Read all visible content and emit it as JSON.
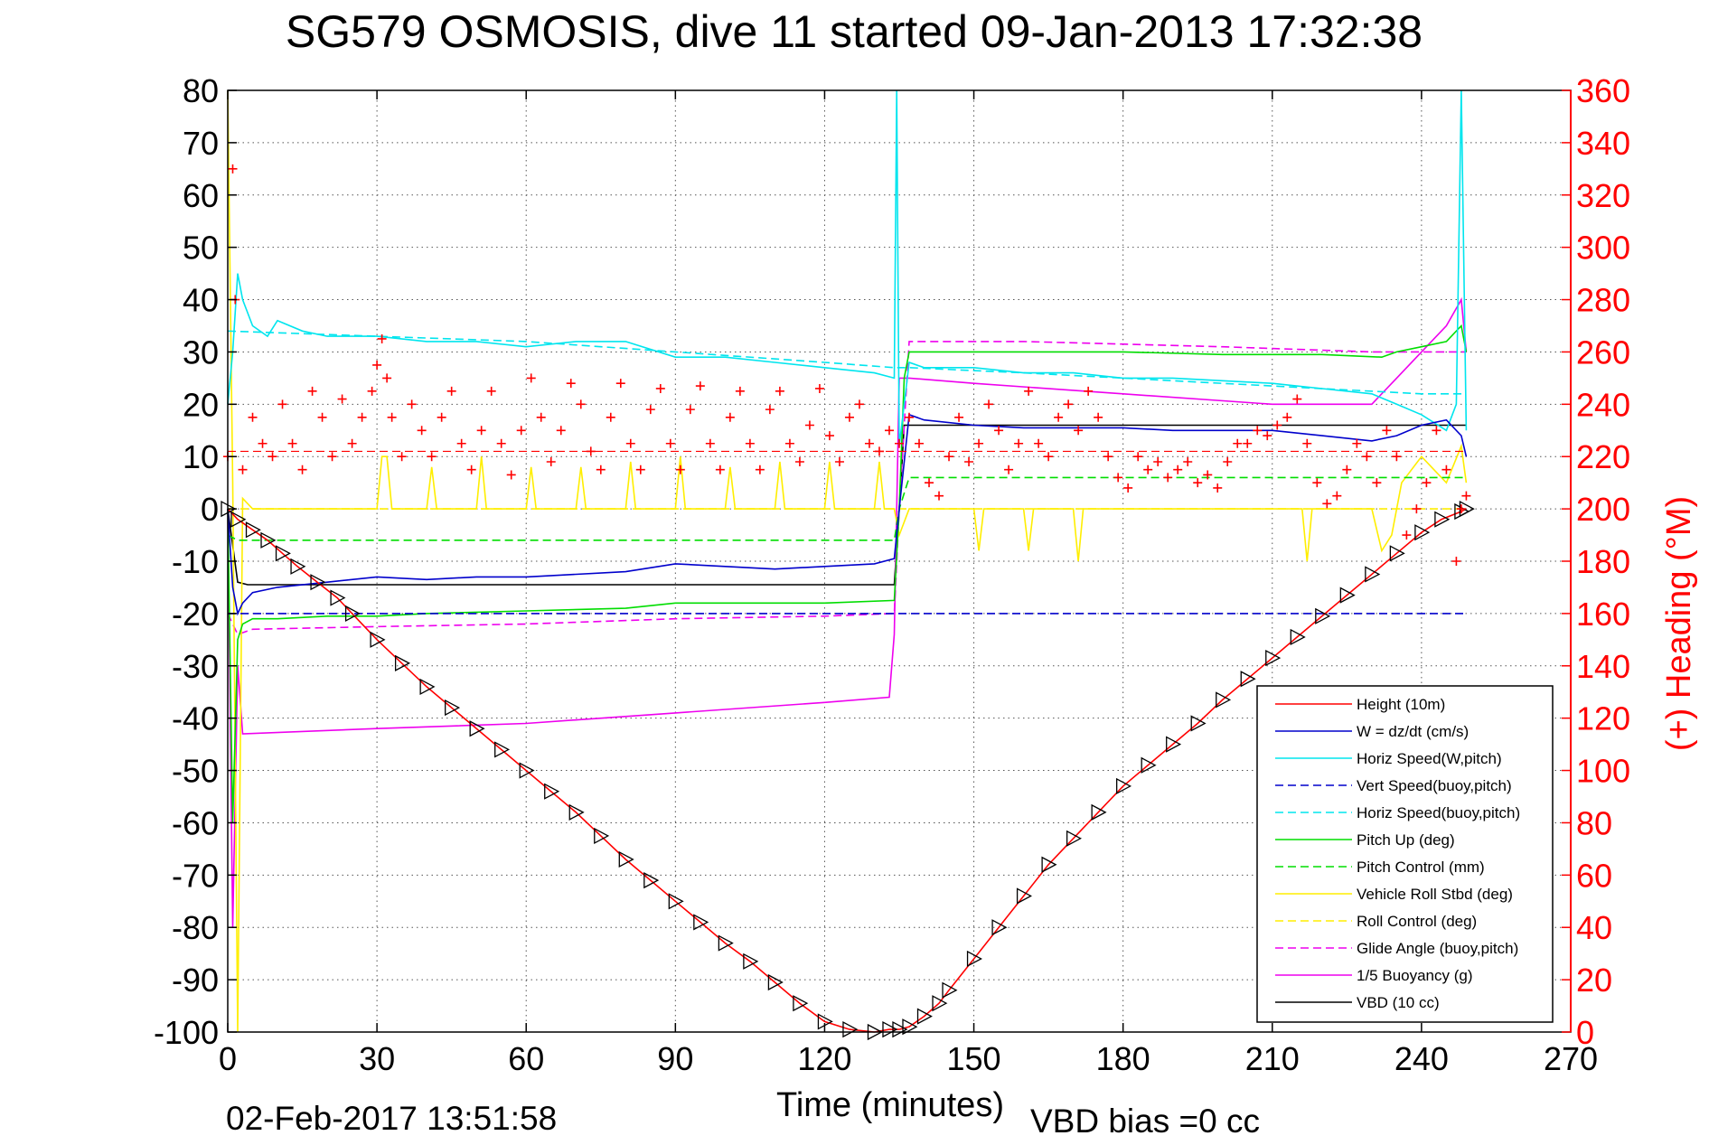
{
  "page": {
    "title": "SG579 OSMOSIS, dive 11 started 09-Jan-2013 17:32:38",
    "footer_date": "02-Feb-2017 13:51:58",
    "footer_vbd": "VBD bias =0 cc"
  },
  "chart_data": {
    "type": "line",
    "title": "SG579 OSMOSIS, dive 11 started 09-Jan-2013 17:32:38",
    "xlabel": "Time (minutes)",
    "ylabel": "",
    "y2label": "(+) Heading (°M)",
    "xlim": [
      0,
      270
    ],
    "ylim": [
      -100,
      80
    ],
    "y2lim": [
      0,
      360
    ],
    "xticks": [
      0,
      30,
      60,
      90,
      120,
      150,
      180,
      210,
      240,
      270
    ],
    "yticks": [
      80,
      70,
      60,
      50,
      40,
      30,
      20,
      10,
      0,
      -10,
      -20,
      -30,
      -40,
      -50,
      -60,
      -70,
      -80,
      -90,
      -100
    ],
    "y2ticks": [
      360,
      340,
      320,
      300,
      280,
      260,
      240,
      220,
      200,
      180,
      160,
      140,
      120,
      100,
      80,
      60,
      40,
      20,
      0
    ],
    "grid": true,
    "legend_position": "bottom-right",
    "colors": {
      "red": "#ff0000",
      "blue": "#0000cc",
      "cyan": "#00e5ee",
      "green": "#00dd00",
      "yellow": "#ffee00",
      "magenta": "#ee00ee",
      "black": "#000000"
    },
    "series": [
      {
        "name": "Height (10m)",
        "color": "red",
        "dash": "solid",
        "marker": "triangle",
        "x": [
          0,
          2,
          5,
          8,
          11,
          14,
          18,
          22,
          25,
          30,
          35,
          40,
          45,
          50,
          55,
          60,
          65,
          70,
          75,
          80,
          85,
          90,
          95,
          100,
          105,
          110,
          115,
          120,
          125,
          130,
          133,
          135,
          137,
          140,
          143,
          145,
          150,
          155,
          160,
          165,
          170,
          175,
          180,
          185,
          190,
          195,
          200,
          205,
          210,
          215,
          220,
          225,
          230,
          235,
          240,
          244,
          248,
          249
        ],
        "y": [
          0,
          -2,
          -4,
          -6,
          -8.5,
          -11,
          -14,
          -17,
          -20,
          -25,
          -29.5,
          -34,
          -38,
          -42,
          -46,
          -50,
          -54,
          -58,
          -62.5,
          -67,
          -71,
          -75,
          -79,
          -83,
          -86.5,
          -90.5,
          -94.5,
          -98,
          -99.5,
          -100,
          -99.5,
          -99.5,
          -99,
          -97,
          -94.5,
          -92,
          -86,
          -80,
          -74,
          -68,
          -63,
          -58,
          -53,
          -49,
          -45,
          -41,
          -36.5,
          -32.5,
          -28.5,
          -24.5,
          -20.5,
          -16.5,
          -12.5,
          -8.5,
          -4.5,
          -2,
          -0.5,
          0
        ]
      },
      {
        "name": "W = dz/dt (cm/s)",
        "color": "blue",
        "dash": "solid",
        "x": [
          0,
          1,
          2,
          3,
          5,
          10,
          20,
          30,
          40,
          50,
          60,
          70,
          80,
          90,
          100,
          110,
          120,
          130,
          134,
          135,
          137,
          140,
          150,
          160,
          170,
          180,
          190,
          200,
          210,
          220,
          230,
          235,
          240,
          245,
          248,
          249
        ],
        "y": [
          0,
          -15,
          -20,
          -18,
          -16,
          -15,
          -14,
          -13,
          -13.5,
          -13,
          -13,
          -12.5,
          -12,
          -10.5,
          -11,
          -11.5,
          -11,
          -10.5,
          -9.5,
          0,
          18,
          17,
          16,
          15.5,
          15.5,
          15.5,
          15,
          15,
          15,
          14,
          13,
          14,
          16,
          17,
          14,
          10
        ]
      },
      {
        "name": "Horiz Speed(W,pitch)",
        "color": "cyan",
        "dash": "solid",
        "x": [
          0,
          1,
          2,
          3,
          5,
          8,
          10,
          15,
          20,
          30,
          40,
          50,
          60,
          70,
          80,
          90,
          100,
          110,
          120,
          130,
          134,
          134.5,
          135,
          136,
          137,
          140,
          150,
          160,
          170,
          180,
          190,
          200,
          210,
          220,
          230,
          235,
          240,
          245,
          247,
          248,
          249
        ],
        "y": [
          20,
          30,
          45,
          40,
          35,
          33,
          36,
          34,
          33,
          33,
          32,
          32,
          31,
          32,
          32,
          29,
          29,
          28,
          27,
          26,
          25,
          80,
          12,
          20,
          28,
          27,
          27,
          26,
          26,
          25,
          25,
          24.5,
          24,
          23,
          22,
          20,
          18,
          15,
          20,
          80,
          15
        ]
      },
      {
        "name": "Vert Speed(buoy,pitch)",
        "color": "blue",
        "dash": "dash",
        "x": [
          0,
          135,
          135.5,
          249
        ],
        "y": [
          -20,
          -20,
          -20,
          -20
        ]
      },
      {
        "name": "Horiz Speed(buoy,pitch)",
        "color": "cyan",
        "dash": "dash",
        "x": [
          0,
          30,
          60,
          90,
          120,
          134,
          137,
          160,
          200,
          240,
          249
        ],
        "y": [
          34,
          33,
          32,
          30,
          28,
          27,
          27,
          26,
          24,
          22,
          22
        ]
      },
      {
        "name": "Pitch Up (deg)",
        "color": "green",
        "dash": "solid",
        "x": [
          0,
          1,
          2,
          3,
          5,
          10,
          20,
          30,
          40,
          60,
          80,
          90,
          100,
          120,
          134,
          135,
          136,
          137,
          140,
          160,
          180,
          200,
          220,
          232,
          235,
          240,
          245,
          248,
          249
        ],
        "y": [
          0,
          -60,
          -25,
          -22,
          -21,
          -21,
          -20.5,
          -20.5,
          -20,
          -19.5,
          -19,
          -18,
          -18,
          -18,
          -17.5,
          0,
          25,
          30,
          30,
          30,
          30,
          29.5,
          29.5,
          29,
          30,
          31,
          32,
          35,
          30
        ]
      },
      {
        "name": "Pitch Control (mm)",
        "color": "green",
        "dash": "dash",
        "x": [
          0,
          2,
          134,
          135,
          137,
          249
        ],
        "y": [
          -5,
          -6,
          -6,
          0,
          6,
          6
        ]
      },
      {
        "name": "Vehicle Roll Stbd (deg)",
        "color": "yellow",
        "dash": "solid",
        "x": [
          0,
          1,
          2,
          3,
          5,
          10,
          20,
          30,
          31,
          32,
          33,
          40,
          41,
          42,
          50,
          51,
          52,
          60,
          61,
          62,
          70,
          71,
          72,
          80,
          81,
          82,
          90,
          91,
          92,
          100,
          101,
          102,
          110,
          111,
          112,
          120,
          121,
          122,
          130,
          131,
          132,
          134,
          135,
          137,
          140,
          150,
          151,
          152,
          160,
          161,
          162,
          170,
          171,
          172,
          180,
          190,
          200,
          210,
          216,
          217,
          218,
          225,
          230,
          232,
          234,
          236,
          240,
          245,
          248,
          249
        ],
        "y": [
          80,
          5,
          -100,
          2,
          0,
          0,
          0,
          0,
          10,
          10,
          0,
          0,
          8,
          0,
          0,
          10,
          0,
          0,
          8,
          0,
          0,
          8,
          0,
          0,
          9,
          0,
          0,
          10,
          0,
          0,
          8,
          0,
          0,
          9,
          0,
          0,
          9,
          0,
          0,
          9,
          0,
          0,
          -5,
          0,
          0,
          0,
          -8,
          0,
          0,
          -8,
          0,
          0,
          -10,
          0,
          0,
          0,
          0,
          0,
          0,
          -10,
          0,
          0,
          0,
          -8,
          -5,
          5,
          10,
          5,
          12,
          5
        ]
      },
      {
        "name": "Roll Control (deg)",
        "color": "yellow",
        "dash": "dash",
        "x": [
          0,
          249
        ],
        "y": [
          0,
          0
        ]
      },
      {
        "name": "Glide Angle (buoy,pitch)",
        "color": "magenta",
        "dash": "dash",
        "x": [
          0,
          2,
          5,
          30,
          60,
          90,
          120,
          134,
          135,
          137,
          160,
          200,
          230,
          249
        ],
        "y": [
          -20,
          -24,
          -23,
          -22.5,
          -22,
          -21,
          -20.5,
          -20,
          0,
          32,
          32,
          31,
          30,
          30
        ]
      },
      {
        "name": "1/5 Buoyancy (g)",
        "color": "magenta",
        "dash": "solid",
        "x": [
          0,
          1,
          2,
          3,
          30,
          60,
          90,
          120,
          133,
          134,
          135,
          137,
          150,
          180,
          210,
          230,
          235,
          240,
          245,
          248,
          249
        ],
        "y": [
          0,
          -80,
          -30,
          -43,
          -42,
          -41,
          -39,
          -37,
          -36,
          -24,
          25,
          25,
          24,
          22,
          20,
          20,
          25,
          30,
          35,
          40,
          30
        ]
      },
      {
        "name": "VBD (10 cc)",
        "color": "black",
        "dash": "solid",
        "x": [
          0,
          2,
          4,
          134,
          135,
          136,
          249
        ],
        "y": [
          0,
          -14,
          -14.5,
          -14.5,
          0,
          16,
          16
        ]
      },
      {
        "name": "Heading",
        "color": "red",
        "dash": "none",
        "marker": "plus",
        "axis": "right",
        "x": [
          0,
          1,
          1.5,
          3,
          5,
          7,
          9,
          11,
          13,
          15,
          17,
          19,
          21,
          23,
          25,
          27,
          29,
          30,
          31,
          32,
          33,
          35,
          37,
          39,
          41,
          43,
          45,
          47,
          49,
          51,
          53,
          55,
          57,
          59,
          61,
          63,
          65,
          67,
          69,
          71,
          73,
          75,
          77,
          79,
          81,
          83,
          85,
          87,
          89,
          91,
          93,
          95,
          97,
          99,
          101,
          103,
          105,
          107,
          109,
          111,
          113,
          115,
          117,
          119,
          121,
          123,
          125,
          127,
          129,
          131,
          133,
          135,
          137,
          139,
          141,
          143,
          145,
          147,
          149,
          151,
          153,
          155,
          157,
          159,
          161,
          163,
          165,
          167,
          169,
          171,
          173,
          175,
          177,
          179,
          181,
          183,
          185,
          187,
          189,
          191,
          193,
          195,
          197,
          199,
          201,
          203,
          205,
          207,
          209,
          211,
          213,
          215,
          217,
          219,
          221,
          223,
          225,
          227,
          229,
          231,
          233,
          235,
          237,
          239,
          241,
          243,
          245,
          247,
          248,
          249
        ],
        "y": [
          220,
          330,
          280,
          215,
          235,
          225,
          220,
          240,
          225,
          215,
          245,
          235,
          220,
          242,
          225,
          235,
          245,
          255,
          265,
          250,
          235,
          220,
          240,
          230,
          220,
          235,
          245,
          225,
          215,
          230,
          245,
          225,
          213,
          230,
          250,
          235,
          218,
          230,
          248,
          240,
          222,
          215,
          235,
          248,
          225,
          215,
          238,
          246,
          225,
          215,
          238,
          247,
          225,
          215,
          235,
          245,
          225,
          215,
          238,
          245,
          225,
          218,
          232,
          246,
          228,
          218,
          235,
          240,
          225,
          222,
          230,
          225,
          235,
          225,
          210,
          205,
          220,
          235,
          218,
          225,
          240,
          230,
          215,
          225,
          245,
          225,
          220,
          235,
          240,
          230,
          245,
          235,
          220,
          212,
          208,
          220,
          215,
          218,
          212,
          215,
          218,
          210,
          213,
          208,
          218,
          225,
          225,
          230,
          228,
          232,
          235,
          242,
          225,
          210,
          202,
          205,
          215,
          225,
          220,
          210,
          230,
          220,
          190,
          200,
          210,
          230,
          215,
          180,
          200,
          205
        ]
      }
    ],
    "legend": [
      "Height (10m)",
      "W = dz/dt (cm/s)",
      "Horiz Speed(W,pitch)",
      "Vert Speed(buoy,pitch)",
      "Horiz Speed(buoy,pitch)",
      "Pitch Up (deg)",
      "Pitch Control (mm)",
      "Vehicle Roll Stbd (deg)",
      "Roll Control (deg)",
      "Glide Angle (buoy,pitch)",
      "1/5 Buoyancy (g)",
      "VBD (10 cc)"
    ]
  }
}
